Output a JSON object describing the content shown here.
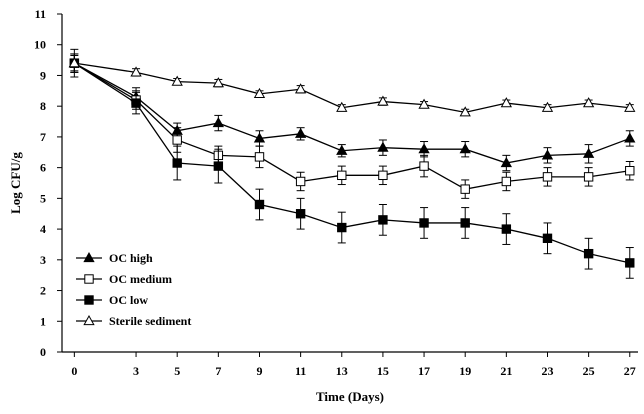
{
  "chart_data": {
    "type": "line",
    "xlabel": "Time (Days)",
    "ylabel": "Log CFU/g",
    "x": [
      0,
      3,
      5,
      7,
      9,
      11,
      13,
      15,
      17,
      19,
      21,
      23,
      25,
      27
    ],
    "x_ticks": [
      0,
      3,
      5,
      7,
      9,
      11,
      13,
      15,
      17,
      19,
      21,
      23,
      25,
      27
    ],
    "xlim": [
      -0.6,
      27.4
    ],
    "ylim": [
      0,
      11
    ],
    "y_ticks": [
      0,
      1,
      2,
      3,
      4,
      5,
      6,
      7,
      8,
      9,
      10,
      11
    ],
    "grid": false,
    "legend_position": "bottom-left",
    "series": [
      {
        "name": "OC high",
        "marker": "filled-triangle",
        "values": [
          9.4,
          8.3,
          7.2,
          7.45,
          6.95,
          7.1,
          6.55,
          6.65,
          6.6,
          6.6,
          6.15,
          6.4,
          6.45,
          6.95
        ],
        "errors": [
          0.25,
          0.3,
          0.25,
          0.25,
          0.25,
          0.2,
          0.2,
          0.25,
          0.25,
          0.25,
          0.25,
          0.25,
          0.3,
          0.25
        ]
      },
      {
        "name": "OC medium",
        "marker": "open-square",
        "values": [
          9.4,
          8.2,
          6.9,
          6.4,
          6.35,
          5.55,
          5.75,
          5.75,
          6.05,
          5.3,
          5.55,
          5.7,
          5.7,
          5.9
        ],
        "errors": [
          0.3,
          0.3,
          0.4,
          0.3,
          0.35,
          0.3,
          0.3,
          0.3,
          0.35,
          0.3,
          0.3,
          0.3,
          0.3,
          0.3
        ]
      },
      {
        "name": "OC low",
        "marker": "filled-square",
        "values": [
          9.4,
          8.1,
          6.15,
          6.05,
          4.8,
          4.5,
          4.05,
          4.3,
          4.2,
          4.2,
          4.0,
          3.7,
          3.2,
          2.9
        ],
        "errors": [
          0.3,
          0.35,
          0.55,
          0.55,
          0.5,
          0.5,
          0.5,
          0.5,
          0.5,
          0.5,
          0.5,
          0.5,
          0.5,
          0.5
        ]
      },
      {
        "name": "Sterile sediment",
        "marker": "open-triangle",
        "values": [
          9.4,
          9.1,
          8.8,
          8.75,
          8.4,
          8.55,
          7.95,
          8.15,
          8.05,
          7.8,
          8.1,
          7.95,
          8.1,
          7.95
        ],
        "errors": [
          0.45,
          0.12,
          0.1,
          0.12,
          0.1,
          0.12,
          0.1,
          0.12,
          0.1,
          0.1,
          0.1,
          0.1,
          0.1,
          0.1
        ]
      }
    ]
  }
}
